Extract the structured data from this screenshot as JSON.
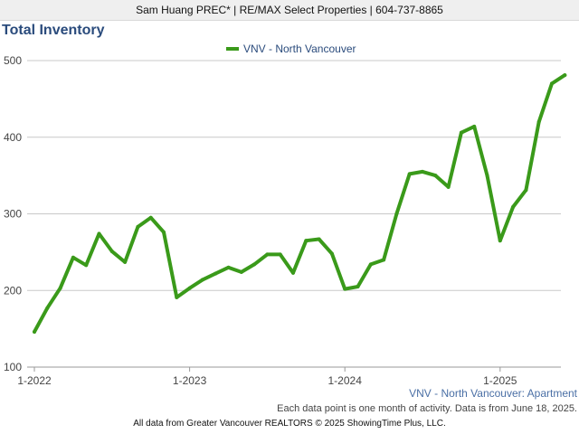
{
  "header": {
    "agent_line": "Sam Huang PREC* | RE/MAX Select Properties | 604-737-8865"
  },
  "chart_data": {
    "type": "line",
    "title": "Total Inventory",
    "subtitle": "VNV - North Vancouver: Apartment",
    "footnote": "Each data point is one month of activity. Data is from June 18, 2025.",
    "credit": "All data from Greater Vancouver REALTORS © 2025 ShowingTime Plus, LLC.",
    "xlabel": "",
    "ylabel": "",
    "ylim": [
      100,
      500
    ],
    "yticks": [
      "100",
      "200",
      "300",
      "400",
      "500"
    ],
    "xticks": [
      "1-2022",
      "1-2023",
      "1-2024",
      "1-2025"
    ],
    "legend_position": "top-center",
    "grid": true,
    "series": [
      {
        "name": "VNV - North Vancouver",
        "color": "#3a9a1a",
        "x": [
          "2022-01",
          "2022-02",
          "2022-03",
          "2022-04",
          "2022-05",
          "2022-06",
          "2022-07",
          "2022-08",
          "2022-09",
          "2022-10",
          "2022-11",
          "2022-12",
          "2023-01",
          "2023-02",
          "2023-03",
          "2023-04",
          "2023-05",
          "2023-06",
          "2023-07",
          "2023-08",
          "2023-09",
          "2023-10",
          "2023-11",
          "2023-12",
          "2024-01",
          "2024-02",
          "2024-03",
          "2024-04",
          "2024-05",
          "2024-06",
          "2024-07",
          "2024-08",
          "2024-09",
          "2024-10",
          "2024-11",
          "2024-12",
          "2025-01",
          "2025-02",
          "2025-03",
          "2025-04",
          "2025-05",
          "2025-06"
        ],
        "values": [
          146,
          177,
          203,
          243,
          233,
          274,
          251,
          237,
          283,
          295,
          276,
          191,
          203,
          214,
          222,
          230,
          224,
          234,
          247,
          247,
          223,
          265,
          267,
          248,
          202,
          205,
          234,
          240,
          300,
          352,
          355,
          350,
          335,
          406,
          414,
          350,
          265,
          309,
          331,
          420,
          470,
          481
        ]
      }
    ]
  }
}
